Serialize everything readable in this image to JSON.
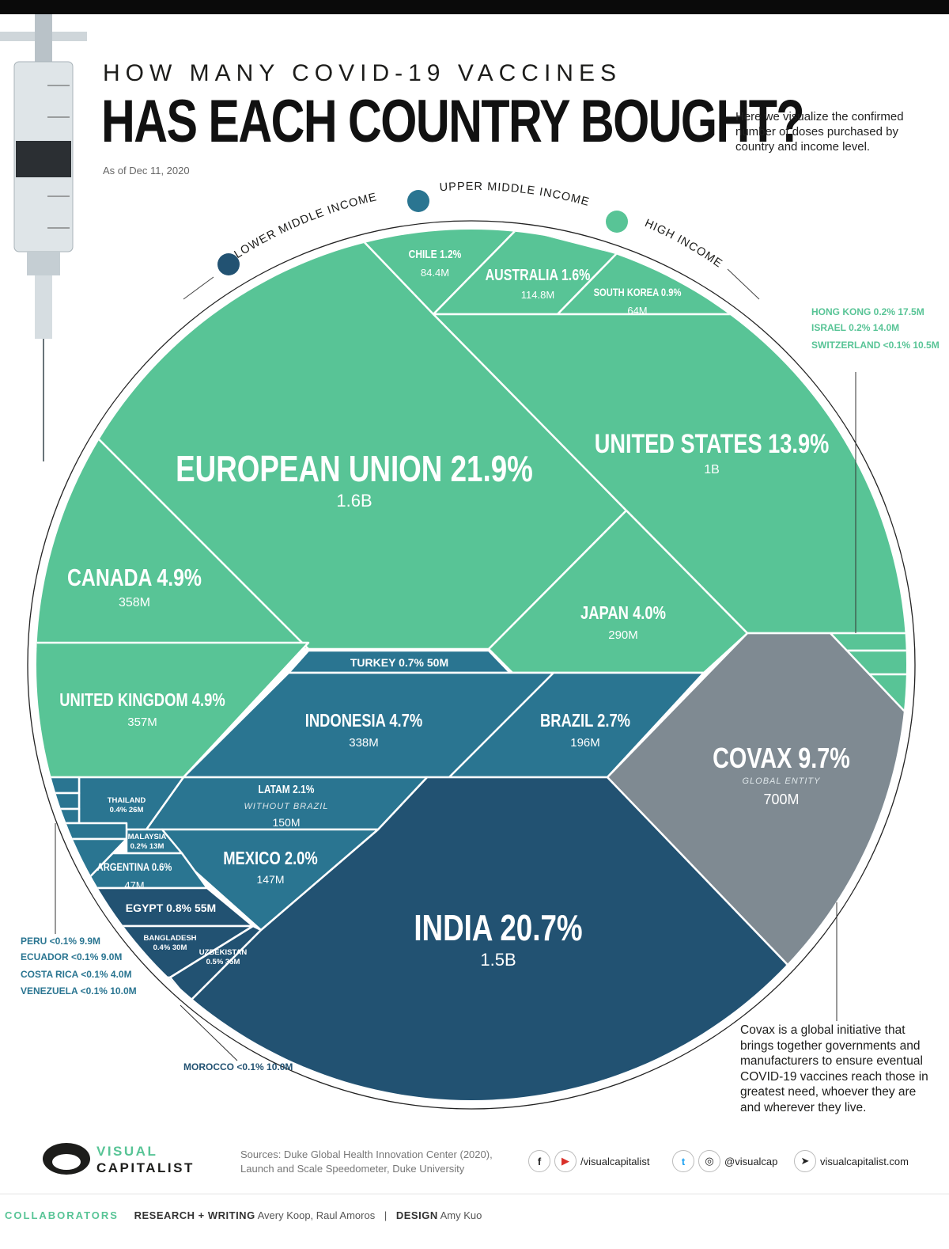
{
  "header": {
    "subtitle": "HOW MANY COVID-19 VACCINES",
    "title": "HAS EACH COUNTRY BOUGHT?",
    "as_of": "As of Dec 11, 2020",
    "description": "Here we visualize the confirmed number of doses purchased by country and income level."
  },
  "income_levels": {
    "lower_middle": "LOWER MIDDLE INCOME",
    "upper_middle": "UPPER MIDDLE INCOME",
    "high": "HIGH INCOME"
  },
  "colors": {
    "high_income": "#58c496",
    "upper_middle": "#2a7591",
    "lower_middle": "#225272",
    "covax": "#7f8a92",
    "background": "#ffffff"
  },
  "chart_data": {
    "type": "voronoi-treemap",
    "title": "HAS EACH COUNTRY BOUGHT?",
    "unit": "doses",
    "segments": [
      {
        "name": "EUROPEAN UNION",
        "share": "21.9%",
        "doses": "1.6B",
        "income": "high"
      },
      {
        "name": "INDIA",
        "share": "20.7%",
        "doses": "1.5B",
        "income": "lower_middle"
      },
      {
        "name": "UNITED STATES",
        "share": "13.9%",
        "doses": "1B",
        "income": "high"
      },
      {
        "name": "COVAX",
        "share": "9.7%",
        "doses": "700M",
        "income": "global",
        "note": "GLOBAL ENTITY"
      },
      {
        "name": "CANADA",
        "share": "4.9%",
        "doses": "358M",
        "income": "high"
      },
      {
        "name": "UNITED KINGDOM",
        "share": "4.9%",
        "doses": "357M",
        "income": "high"
      },
      {
        "name": "INDONESIA",
        "share": "4.7%",
        "doses": "338M",
        "income": "lower_middle"
      },
      {
        "name": "JAPAN",
        "share": "4.0%",
        "doses": "290M",
        "income": "high"
      },
      {
        "name": "BRAZIL",
        "share": "2.7%",
        "doses": "196M",
        "income": "upper_middle"
      },
      {
        "name": "LATAM",
        "share": "2.1%",
        "doses": "150M",
        "income": "upper_middle",
        "note": "WITHOUT BRAZIL"
      },
      {
        "name": "MEXICO",
        "share": "2.0%",
        "doses": "147M",
        "income": "upper_middle"
      },
      {
        "name": "AUSTRALIA",
        "share": "1.6%",
        "doses": "114.8M",
        "income": "high"
      },
      {
        "name": "CHILE",
        "share": "1.2%",
        "doses": "84.4M",
        "income": "high"
      },
      {
        "name": "SOUTH KOREA",
        "share": "0.9%",
        "doses": "64M",
        "income": "high"
      },
      {
        "name": "EGYPT",
        "share": "0.8%",
        "doses": "55M",
        "income": "lower_middle"
      },
      {
        "name": "TURKEY",
        "share": "0.7%",
        "doses": "50M",
        "income": "upper_middle"
      },
      {
        "name": "ARGENTINA",
        "share": "0.6%",
        "doses": "47M",
        "income": "upper_middle"
      },
      {
        "name": "UZBEKISTAN",
        "share": "0.5%",
        "doses": "35M",
        "income": "lower_middle"
      },
      {
        "name": "THAILAND",
        "share": "0.4%",
        "doses": "26M",
        "income": "upper_middle"
      },
      {
        "name": "BANGLADESH",
        "share": "0.4%",
        "doses": "30M",
        "income": "lower_middle"
      },
      {
        "name": "MALAYSIA",
        "share": "0.2%",
        "doses": "13M",
        "income": "upper_middle"
      },
      {
        "name": "HONG KONG",
        "share": "0.2%",
        "doses": "17.5M",
        "income": "high"
      },
      {
        "name": "ISRAEL",
        "share": "0.2%",
        "doses": "14.0M",
        "income": "high"
      },
      {
        "name": "SWITZERLAND",
        "share": "<0.1%",
        "doses": "10.5M",
        "income": "high"
      },
      {
        "name": "PERU",
        "share": "<0.1%",
        "doses": "9.9M",
        "income": "upper_middle"
      },
      {
        "name": "ECUADOR",
        "share": "<0.1%",
        "doses": "9.0M",
        "income": "upper_middle"
      },
      {
        "name": "COSTA RICA",
        "share": "<0.1%",
        "doses": "4.0M",
        "income": "upper_middle"
      },
      {
        "name": "VENEZUELA",
        "share": "<0.1%",
        "doses": "10.0M",
        "income": "upper_middle"
      },
      {
        "name": "MOROCCO",
        "share": "<0.1%",
        "doses": "10.0M",
        "income": "lower_middle"
      }
    ]
  },
  "covax_note": "Covax is a global initiative that brings together governments and manufacturers to ensure eventual COVID-19 vaccines reach those in greatest need, whoever they are and wherever they live.",
  "footer": {
    "logo_line1": "VISUAL",
    "logo_line2": "CAPITALIST",
    "sources": "Sources: Duke Global Health Innovation Center (2020), Launch and Scale Speedometer, Duke University",
    "social_fb_yt": "/visualcapitalist",
    "social_tw_ig": "@visualcap",
    "website": "visualcapitalist.com",
    "collaborators_label": "COLLABORATORS",
    "research_label": "RESEARCH + WRITING",
    "research_names": "Avery Koop, Raul Amoros",
    "design_label": "DESIGN",
    "design_names": "Amy Kuo",
    "separator": "|"
  },
  "icons": {
    "facebook": "f",
    "youtube": "▶",
    "twitter": "t",
    "instagram": "◎",
    "cursor": "➤"
  }
}
